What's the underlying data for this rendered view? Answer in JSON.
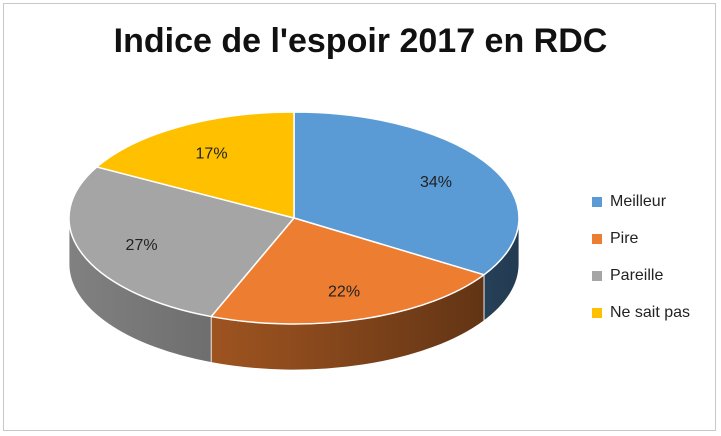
{
  "chart_data": {
    "type": "pie",
    "title": "Indice de l'espoir 2017 en RDC",
    "categories": [
      "Meilleur",
      "Pire",
      "Pareille",
      "Ne sait pas"
    ],
    "values": [
      34,
      22,
      27,
      17
    ],
    "labels": [
      "34%",
      "22%",
      "27%",
      "17%"
    ],
    "colors": [
      "#5b9bd5",
      "#ed7d31",
      "#a5a5a5",
      "#ffc000"
    ],
    "style": "3d",
    "legend_position": "right"
  }
}
